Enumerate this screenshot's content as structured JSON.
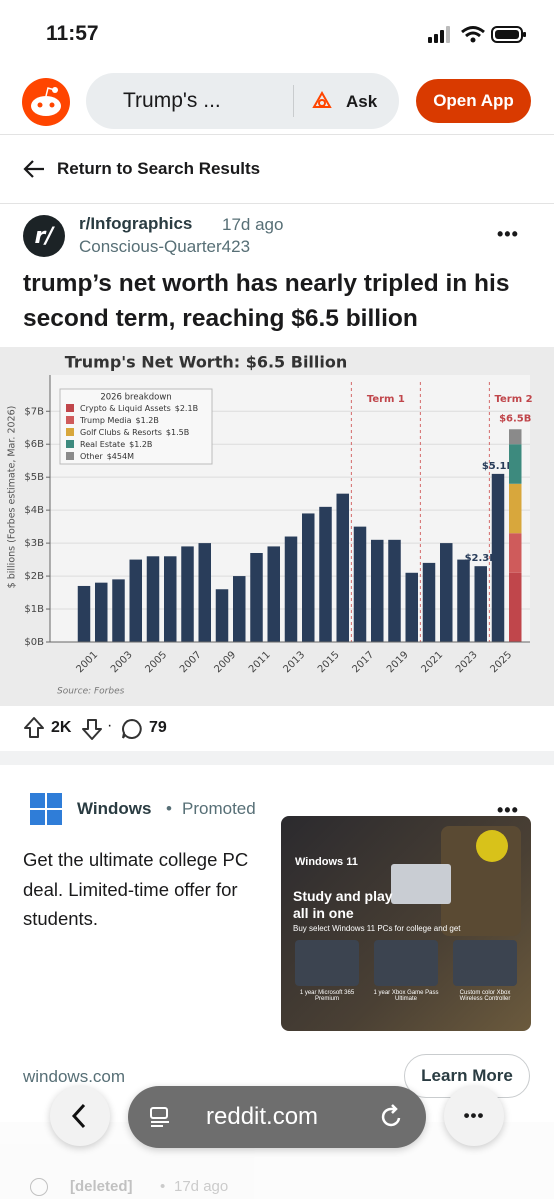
{
  "status_bar": {
    "time": "11:57"
  },
  "header": {
    "search": "Trump's ...",
    "ask": "Ask",
    "open_app": "Open App"
  },
  "nav": {
    "back": "Return to Search Results"
  },
  "post": {
    "subreddit": "r/Infographics",
    "age": "17d ago",
    "author": "Conscious-Quarter423",
    "title": "trump’s net worth has nearly tripled in his second term, reaching $6.5 billion",
    "upvotes": "2K",
    "comments": "79"
  },
  "chart_data": {
    "type": "bar",
    "title": "Trump's Net Worth: $6.5 Billion",
    "y_label": "$ billions (Forbes estimate, Mar. 2026)",
    "source": "Source: Forbes",
    "categories": [
      "2001",
      null,
      "2003",
      null,
      "2005",
      null,
      "2007",
      null,
      "2009",
      null,
      "2011",
      null,
      "2013",
      null,
      "2015",
      null,
      "2017",
      null,
      "2019",
      null,
      "2021",
      null,
      "2023",
      null,
      "2025",
      null
    ],
    "values": [
      1.7,
      1.8,
      1.9,
      2.5,
      2.6,
      2.6,
      2.9,
      3.0,
      1.6,
      2.0,
      2.7,
      2.9,
      3.2,
      3.9,
      4.1,
      4.5,
      3.5,
      3.1,
      3.1,
      2.1,
      2.4,
      3.0,
      2.5,
      2.3,
      5.1,
      null
    ],
    "value_labels": [
      null,
      null,
      null,
      null,
      null,
      null,
      null,
      null,
      null,
      null,
      null,
      null,
      null,
      null,
      null,
      null,
      null,
      null,
      null,
      null,
      null,
      null,
      null,
      "$2.3B",
      "$5.1B",
      null
    ],
    "color": "#293d5a",
    "breakdown": {
      "title": "2026 breakdown",
      "series": [
        {
          "name": "Crypto & Liquid Assets",
          "value": 2.1,
          "value_label": "$2.1B",
          "color": "#c0464b"
        },
        {
          "name": "Trump Media",
          "value": 1.2,
          "value_label": "$1.2B",
          "color": "#cf5b5b"
        },
        {
          "name": "Golf Clubs & Resorts",
          "value": 1.5,
          "value_label": "$1.5B",
          "color": "#d8a73c"
        },
        {
          "name": "Real Estate",
          "value": 1.2,
          "value_label": "$1.2B",
          "color": "#3d8a7e"
        },
        {
          "name": "Other",
          "value": 0.454,
          "value_label": "$454M",
          "color": "#8a8a8a"
        }
      ],
      "total_label": "$6.5B"
    },
    "annotations": [
      "Term 1",
      "Term 2"
    ],
    "ylim": [
      0,
      8.1
    ],
    "yticks": [
      {
        "value": 0,
        "label": "$0B"
      },
      {
        "value": 1,
        "label": "$1B"
      },
      {
        "value": 2,
        "label": "$2B"
      },
      {
        "value": 3,
        "label": "$3B"
      },
      {
        "value": 4,
        "label": "$4B"
      },
      {
        "value": 5,
        "label": "$5B"
      },
      {
        "value": 6,
        "label": "$6B"
      },
      {
        "value": 7,
        "label": "$7B"
      }
    ],
    "grid": true
  },
  "ad": {
    "brand": "Windows",
    "promoted": "Promoted",
    "text": "Get the ultimate college PC deal. Limited-time offer for students.",
    "image": {
      "logo": "Windows 11",
      "headline": "Study and play all in one",
      "sub": "Buy select Windows 11 PCs for college and get",
      "items": [
        "1 year Microsoft 365 Premium",
        "1 year Xbox Game Pass Ultimate",
        "Custom color Xbox Wireless Controller"
      ]
    },
    "domain": "windows.com",
    "cta": "Learn More"
  },
  "browser": {
    "url": "reddit.com"
  },
  "comment": {
    "author": "[deleted]",
    "age": "17d ago"
  }
}
